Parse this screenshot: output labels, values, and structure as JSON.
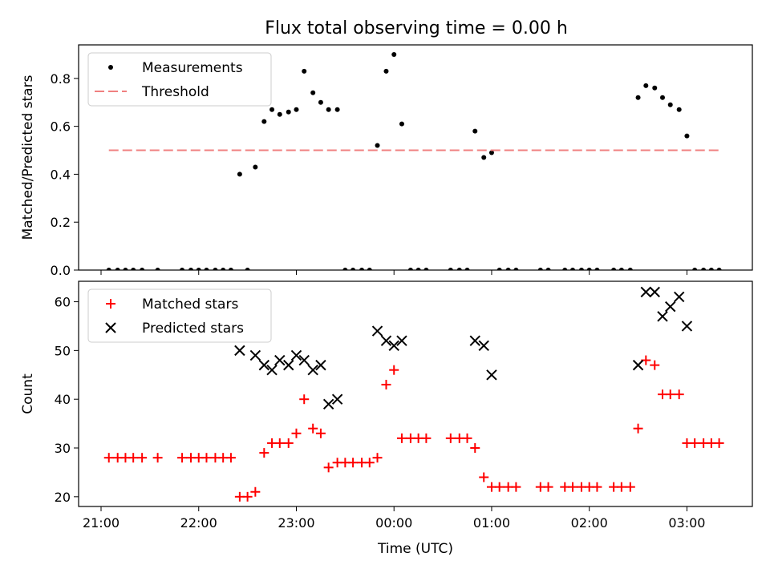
{
  "figure": {
    "title": "Flux total observing time = 0.00 h"
  },
  "chart_data": [
    {
      "type": "scatter",
      "ylabel": "Matched/Predicted stars",
      "ylim": [
        0.0,
        0.94
      ],
      "yticks": [
        0.0,
        0.2,
        0.4,
        0.6,
        0.8
      ],
      "ytick_labels": [
        "0.0",
        "0.2",
        "0.4",
        "0.6",
        "0.8"
      ],
      "x_unit": "hours after 21:00 UTC",
      "xlim": [
        -0.23,
        6.67
      ],
      "grid": false,
      "legend_position": "top-left",
      "legend": [
        {
          "label": "Measurements",
          "marker": "dot",
          "color": "#000000"
        },
        {
          "label": "Threshold",
          "marker": "dash",
          "color": "#f08080"
        }
      ],
      "series": [
        {
          "name": "Measurements",
          "color": "#000000",
          "points": [
            [
              0.08,
              0.0
            ],
            [
              0.17,
              0.0
            ],
            [
              0.25,
              0.0
            ],
            [
              0.33,
              0.0
            ],
            [
              0.42,
              0.0
            ],
            [
              0.58,
              0.0
            ],
            [
              0.83,
              0.0
            ],
            [
              0.92,
              0.0
            ],
            [
              1.0,
              0.0
            ],
            [
              1.08,
              0.0
            ],
            [
              1.17,
              0.0
            ],
            [
              1.25,
              0.0
            ],
            [
              1.33,
              0.0
            ],
            [
              1.42,
              0.4
            ],
            [
              1.5,
              0.0
            ],
            [
              1.58,
              0.43
            ],
            [
              1.67,
              0.62
            ],
            [
              1.75,
              0.67
            ],
            [
              1.83,
              0.65
            ],
            [
              1.92,
              0.66
            ],
            [
              2.0,
              0.67
            ],
            [
              2.08,
              0.83
            ],
            [
              2.17,
              0.74
            ],
            [
              2.25,
              0.7
            ],
            [
              2.33,
              0.67
            ],
            [
              2.42,
              0.67
            ],
            [
              2.5,
              0.0
            ],
            [
              2.58,
              0.0
            ],
            [
              2.67,
              0.0
            ],
            [
              2.75,
              0.0
            ],
            [
              2.83,
              0.52
            ],
            [
              2.92,
              0.83
            ],
            [
              3.0,
              0.9
            ],
            [
              3.08,
              0.61
            ],
            [
              3.17,
              0.0
            ],
            [
              3.25,
              0.0
            ],
            [
              3.33,
              0.0
            ],
            [
              3.58,
              0.0
            ],
            [
              3.67,
              0.0
            ],
            [
              3.75,
              0.0
            ],
            [
              3.83,
              0.58
            ],
            [
              3.92,
              0.47
            ],
            [
              4.0,
              0.49
            ],
            [
              4.08,
              0.0
            ],
            [
              4.17,
              0.0
            ],
            [
              4.25,
              0.0
            ],
            [
              4.5,
              0.0
            ],
            [
              4.58,
              0.0
            ],
            [
              4.75,
              0.0
            ],
            [
              4.83,
              0.0
            ],
            [
              4.92,
              0.0
            ],
            [
              5.0,
              0.0
            ],
            [
              5.08,
              0.0
            ],
            [
              5.25,
              0.0
            ],
            [
              5.33,
              0.0
            ],
            [
              5.42,
              0.0
            ],
            [
              5.5,
              0.72
            ],
            [
              5.58,
              0.77
            ],
            [
              5.67,
              0.76
            ],
            [
              5.75,
              0.72
            ],
            [
              5.83,
              0.69
            ],
            [
              5.92,
              0.67
            ],
            [
              6.0,
              0.56
            ],
            [
              6.08,
              0.0
            ],
            [
              6.17,
              0.0
            ],
            [
              6.25,
              0.0
            ],
            [
              6.33,
              0.0
            ]
          ]
        },
        {
          "name": "Threshold",
          "color": "#f08080",
          "line": [
            [
              0.08,
              0.5
            ],
            [
              6.33,
              0.5
            ]
          ]
        }
      ]
    },
    {
      "type": "scatter",
      "ylabel": "Count",
      "xlabel": "Time (UTC)",
      "ylim": [
        18,
        64.2
      ],
      "yticks": [
        20,
        30,
        40,
        50,
        60
      ],
      "ytick_labels": [
        "20",
        "30",
        "40",
        "50",
        "60"
      ],
      "x_unit": "hours after 21:00 UTC",
      "xlim": [
        -0.23,
        6.67
      ],
      "xticks": [
        0,
        1,
        2,
        3,
        4,
        5,
        6
      ],
      "xtick_labels": [
        "21:00",
        "22:00",
        "23:00",
        "00:00",
        "01:00",
        "02:00",
        "03:00"
      ],
      "grid": false,
      "legend_position": "top-left",
      "legend": [
        {
          "label": "Matched stars",
          "marker": "plus",
          "color": "#ff0000"
        },
        {
          "label": "Predicted stars",
          "marker": "x",
          "color": "#000000"
        }
      ],
      "series": [
        {
          "name": "Matched stars",
          "color": "#ff0000",
          "points": [
            [
              0.08,
              28
            ],
            [
              0.17,
              28
            ],
            [
              0.25,
              28
            ],
            [
              0.33,
              28
            ],
            [
              0.42,
              28
            ],
            [
              0.58,
              28
            ],
            [
              0.83,
              28
            ],
            [
              0.92,
              28
            ],
            [
              1.0,
              28
            ],
            [
              1.08,
              28
            ],
            [
              1.17,
              28
            ],
            [
              1.25,
              28
            ],
            [
              1.33,
              28
            ],
            [
              1.42,
              20
            ],
            [
              1.5,
              20
            ],
            [
              1.58,
              21
            ],
            [
              1.67,
              29
            ],
            [
              1.75,
              31
            ],
            [
              1.83,
              31
            ],
            [
              1.92,
              31
            ],
            [
              2.0,
              33
            ],
            [
              2.08,
              40
            ],
            [
              2.17,
              34
            ],
            [
              2.25,
              33
            ],
            [
              2.33,
              26
            ],
            [
              2.42,
              27
            ],
            [
              2.5,
              27
            ],
            [
              2.58,
              27
            ],
            [
              2.67,
              27
            ],
            [
              2.75,
              27
            ],
            [
              2.83,
              28
            ],
            [
              2.92,
              43
            ],
            [
              3.0,
              46
            ],
            [
              3.08,
              32
            ],
            [
              3.17,
              32
            ],
            [
              3.25,
              32
            ],
            [
              3.33,
              32
            ],
            [
              3.58,
              32
            ],
            [
              3.67,
              32
            ],
            [
              3.75,
              32
            ],
            [
              3.83,
              30
            ],
            [
              3.92,
              24
            ],
            [
              4.0,
              22
            ],
            [
              4.08,
              22
            ],
            [
              4.17,
              22
            ],
            [
              4.25,
              22
            ],
            [
              4.5,
              22
            ],
            [
              4.58,
              22
            ],
            [
              4.75,
              22
            ],
            [
              4.83,
              22
            ],
            [
              4.92,
              22
            ],
            [
              5.0,
              22
            ],
            [
              5.08,
              22
            ],
            [
              5.25,
              22
            ],
            [
              5.33,
              22
            ],
            [
              5.42,
              22
            ],
            [
              5.5,
              34
            ],
            [
              5.58,
              48
            ],
            [
              5.67,
              47
            ],
            [
              5.75,
              41
            ],
            [
              5.83,
              41
            ],
            [
              5.92,
              41
            ],
            [
              6.0,
              31
            ],
            [
              6.08,
              31
            ],
            [
              6.17,
              31
            ],
            [
              6.25,
              31
            ],
            [
              6.33,
              31
            ]
          ]
        },
        {
          "name": "Predicted stars",
          "color": "#000000",
          "points": [
            [
              1.42,
              50
            ],
            [
              1.58,
              49
            ],
            [
              1.67,
              47
            ],
            [
              1.75,
              46
            ],
            [
              1.83,
              48
            ],
            [
              1.92,
              47
            ],
            [
              2.0,
              49
            ],
            [
              2.08,
              48
            ],
            [
              2.17,
              46
            ],
            [
              2.25,
              47
            ],
            [
              2.33,
              39
            ],
            [
              2.42,
              40
            ],
            [
              2.83,
              54
            ],
            [
              2.92,
              52
            ],
            [
              3.0,
              51
            ],
            [
              3.08,
              52
            ],
            [
              3.83,
              52
            ],
            [
              3.92,
              51
            ],
            [
              4.0,
              45
            ],
            [
              5.5,
              47
            ],
            [
              5.58,
              62
            ],
            [
              5.67,
              62
            ],
            [
              5.75,
              57
            ],
            [
              5.83,
              59
            ],
            [
              5.92,
              61
            ],
            [
              6.0,
              55
            ]
          ]
        }
      ]
    }
  ]
}
